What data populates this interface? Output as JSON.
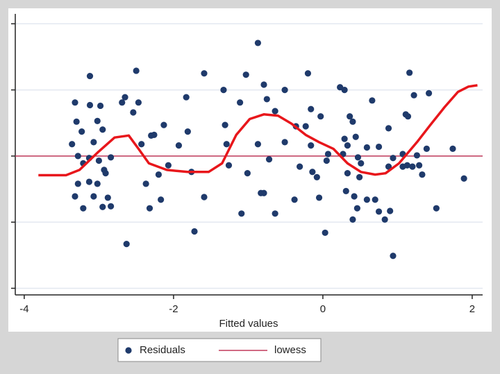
{
  "chart_data": {
    "type": "scatter",
    "x_label": "Fitted values",
    "xlim": [
      -4.12,
      2.14
    ],
    "xticks": [
      -4,
      -2,
      0,
      2
    ],
    "ylim": [
      -2.1,
      2.15
    ],
    "yticks": [
      -2,
      -1,
      0,
      1,
      2
    ],
    "grid": true,
    "reference_line": {
      "value": 0,
      "color": "#c0395a"
    },
    "legend": "bottom",
    "series": [
      {
        "name": "Residuals",
        "type": "scatter",
        "color": "#1f3a6b",
        "x": [
          -3.12,
          -3.32,
          -3.12,
          -2.98,
          -3.3,
          -3.02,
          -3.23,
          -3.36,
          -2.95,
          -3.07,
          -3.28,
          -3.21,
          -3.13,
          -3.0,
          -2.93,
          -2.84,
          -3.28,
          -3.13,
          -3.02,
          -2.91,
          -3.32,
          -3.07,
          -3.21,
          -2.95,
          -2.84,
          -2.88,
          -2.5,
          -2.65,
          -2.69,
          -2.47,
          -2.54,
          -2.43,
          -2.3,
          -2.13,
          -2.26,
          -2.37,
          -2.2,
          -2.07,
          -2.32,
          -2.17,
          -2.63,
          -1.83,
          -1.81,
          -1.93,
          -1.76,
          -1.72,
          -1.59,
          -1.59,
          -1.33,
          -1.11,
          -1.31,
          -1.29,
          -1.26,
          -1.01,
          -1.09,
          -1.03,
          -0.87,
          -0.79,
          -0.75,
          -0.87,
          -0.72,
          -0.83,
          -0.79,
          -0.64,
          -0.51,
          -0.64,
          -0.51,
          -0.36,
          -0.2,
          -0.16,
          -0.23,
          -0.31,
          -0.14,
          -0.08,
          -0.38,
          -0.05,
          -0.03,
          -0.16,
          0.05,
          0.03,
          0.23,
          0.29,
          0.36,
          0.4,
          0.29,
          0.27,
          0.33,
          0.31,
          0.42,
          0.4,
          0.46,
          0.51,
          0.47,
          0.49,
          0.59,
          0.66,
          0.7,
          0.59,
          0.75,
          0.83,
          0.75,
          0.88,
          0.9,
          0.94,
          0.94,
          1.07,
          1.13,
          1.16,
          1.11,
          1.14,
          1.22,
          1.2,
          1.29,
          1.33,
          1.39,
          1.42,
          1.52,
          1.74,
          1.89,
          0.88,
          0.33,
          0.07,
          0.44,
          1.26,
          1.07
        ],
        "values": [
          1.21,
          0.81,
          0.77,
          0.76,
          0.52,
          0.53,
          0.37,
          0.18,
          0.4,
          0.21,
          0,
          -0.11,
          -0.03,
          -0.07,
          -0.21,
          -0.02,
          -0.42,
          -0.39,
          -0.42,
          -0.26,
          -0.61,
          -0.61,
          -0.79,
          -0.77,
          -0.76,
          -0.63,
          1.29,
          0.89,
          0.81,
          0.81,
          0.66,
          0.18,
          0.31,
          0.47,
          0.32,
          -0.42,
          -0.28,
          -0.14,
          -0.79,
          -0.66,
          -1.33,
          0.89,
          0.37,
          0.16,
          -0.24,
          -1.14,
          1.25,
          -0.62,
          1.0,
          0.81,
          0.47,
          0.18,
          -0.14,
          -0.26,
          -0.87,
          1.23,
          1.71,
          1.08,
          0.86,
          0.18,
          -0.05,
          -0.56,
          -0.56,
          -0.87,
          1.0,
          0.68,
          0.21,
          0.45,
          1.25,
          0.71,
          0.45,
          -0.16,
          -0.24,
          -0.32,
          -0.66,
          -0.63,
          0.6,
          0.16,
          -0.07,
          -1.16,
          1.04,
          1.0,
          0.6,
          0.52,
          0.26,
          0.03,
          -0.26,
          -0.53,
          -0.61,
          -0.96,
          -0.79,
          -0.11,
          -0.02,
          -0.32,
          0.13,
          0.84,
          -0.66,
          -0.66,
          -0.84,
          -0.96,
          0.14,
          0.42,
          -0.83,
          -0.03,
          -1.51,
          0.03,
          -0.14,
          1.26,
          0.63,
          0.6,
          0.92,
          -0.16,
          -0.14,
          -0.28,
          0.11,
          0.95,
          -0.79,
          0.11,
          -0.34,
          -0.16,
          0.16,
          0.03,
          0.29,
          0.01,
          -0.16
        ]
      },
      {
        "name": "lowess",
        "type": "line",
        "color": "#e8161b",
        "x": [
          -3.81,
          -3.44,
          -3.26,
          -3.02,
          -2.79,
          -2.6,
          -2.47,
          -2.33,
          -2.09,
          -1.81,
          -1.53,
          -1.35,
          -1.16,
          -0.98,
          -0.79,
          -0.6,
          -0.42,
          -0.23,
          -0.05,
          0.14,
          0.33,
          0.51,
          0.7,
          0.84,
          1.02,
          1.26,
          1.44,
          1.63,
          1.81,
          1.95,
          2.07
        ],
        "values": [
          -0.29,
          -0.29,
          -0.21,
          0.05,
          0.28,
          0.31,
          0.11,
          -0.11,
          -0.21,
          -0.24,
          -0.24,
          -0.11,
          0.32,
          0.56,
          0.63,
          0.61,
          0.49,
          0.32,
          0.21,
          0.11,
          -0.11,
          -0.24,
          -0.28,
          -0.26,
          -0.11,
          0.21,
          0.47,
          0.74,
          0.97,
          1.05,
          1.07
        ]
      }
    ]
  }
}
